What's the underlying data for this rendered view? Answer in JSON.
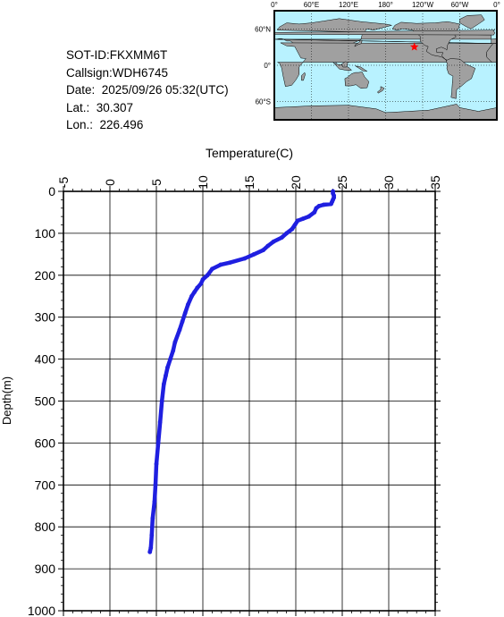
{
  "info": {
    "sot_id": "SOT-ID:FKXMM6T",
    "callsign": "Callsign:WDH6745",
    "date": "Date:  2025/09/26 05:32(UTC)",
    "lat": "Lat.:  30.307",
    "lon": "Lon.:  226.496"
  },
  "map": {
    "lon_labels": [
      "0°",
      "60°E",
      "120°E",
      "180°",
      "120°W",
      "60°W",
      "0°"
    ],
    "lat_labels": [
      "60°N",
      "0°",
      "60°S"
    ],
    "marker": {
      "lat": 30.307,
      "lon": 226.496
    },
    "ocean_color": "#b8f2ff",
    "land_color": "#a0a0a0",
    "marker_color": "#ff0000"
  },
  "chart_data": {
    "type": "line",
    "title": "",
    "xlabel": "Temperature(C)",
    "ylabel": "Depth(m)",
    "xlim": [
      -5,
      35
    ],
    "ylim": [
      0,
      1000
    ],
    "x_axis_position": "top",
    "y_inverted": true,
    "grid": true,
    "xticks": [
      "-5",
      "0",
      "5",
      "10",
      "15",
      "20",
      "25",
      "30",
      "35"
    ],
    "yticks": [
      "0",
      "100",
      "200",
      "300",
      "400",
      "500",
      "600",
      "700",
      "800",
      "900",
      "1000"
    ],
    "series": [
      {
        "color": "#1f1fe0",
        "points": [
          [
            24.0,
            0
          ],
          [
            24.0,
            5
          ],
          [
            24.1,
            10
          ],
          [
            24.1,
            15
          ],
          [
            24.0,
            20
          ],
          [
            23.9,
            25
          ],
          [
            23.8,
            30
          ],
          [
            23.0,
            32
          ],
          [
            22.5,
            35
          ],
          [
            22.2,
            40
          ],
          [
            22.0,
            50
          ],
          [
            21.4,
            60
          ],
          [
            20.8,
            65
          ],
          [
            20.2,
            70
          ],
          [
            19.9,
            80
          ],
          [
            19.6,
            90
          ],
          [
            19.0,
            100
          ],
          [
            18.5,
            110
          ],
          [
            17.6,
            120
          ],
          [
            17.0,
            130
          ],
          [
            16.5,
            140
          ],
          [
            15.5,
            150
          ],
          [
            14.5,
            160
          ],
          [
            12.9,
            170
          ],
          [
            11.9,
            175
          ],
          [
            11.0,
            185
          ],
          [
            10.5,
            200
          ],
          [
            10.0,
            210
          ],
          [
            9.8,
            220
          ],
          [
            9.4,
            230
          ],
          [
            9.1,
            240
          ],
          [
            8.8,
            250
          ],
          [
            8.4,
            270
          ],
          [
            8.1,
            290
          ],
          [
            7.8,
            310
          ],
          [
            7.5,
            330
          ],
          [
            7.0,
            360
          ],
          [
            6.8,
            380
          ],
          [
            6.5,
            400
          ],
          [
            6.2,
            420
          ],
          [
            6.0,
            440
          ],
          [
            5.8,
            460
          ],
          [
            5.6,
            500
          ],
          [
            5.4,
            550
          ],
          [
            5.2,
            600
          ],
          [
            5.0,
            650
          ],
          [
            4.9,
            700
          ],
          [
            4.8,
            740
          ],
          [
            4.6,
            780
          ],
          [
            4.5,
            820
          ],
          [
            4.4,
            850
          ],
          [
            4.3,
            860
          ]
        ]
      }
    ]
  }
}
